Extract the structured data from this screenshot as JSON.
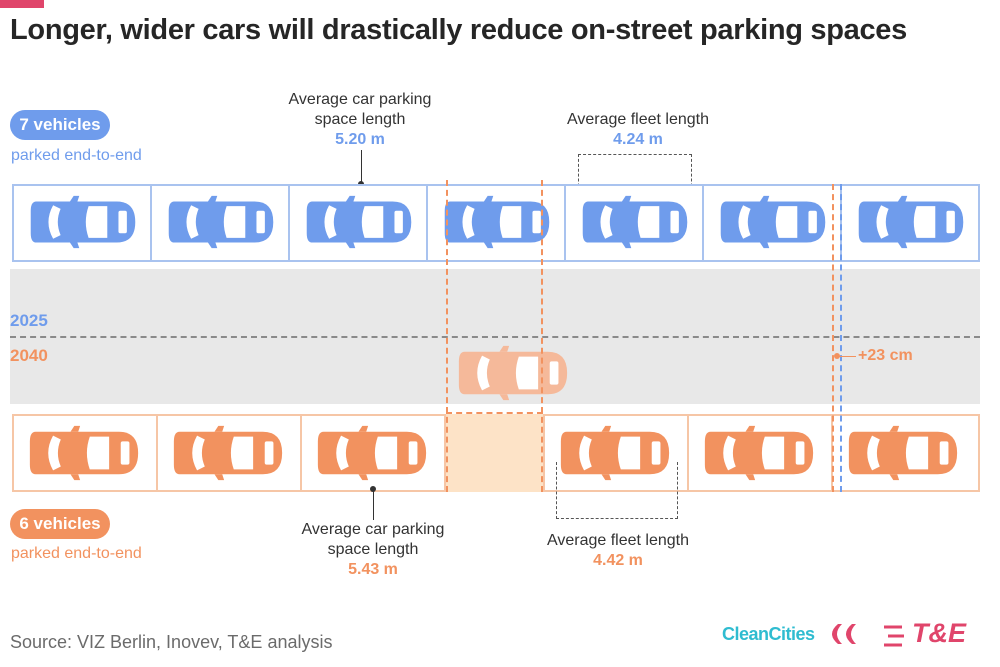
{
  "title": "Longer, wider cars will drastically reduce on-street parking spaces",
  "colors": {
    "blue": "#6f9cec",
    "orange": "#f2925f",
    "accent": "#e0456b",
    "cleancities": "#2fbcd0"
  },
  "top_row": {
    "count_label": "7 vehicles",
    "sub_label": "parked end-to-end",
    "year": "2025",
    "vehicles": 7,
    "space_label": "Average car parking space length",
    "space_value": "5.20 m",
    "fleet_label": "Average fleet length",
    "fleet_value": "4.24 m"
  },
  "bottom_row": {
    "count_label": "6 vehicles",
    "sub_label": "parked end-to-end",
    "year": "2040",
    "vehicles": 6,
    "space_label": "Average car parking space length",
    "space_value": "5.43 m",
    "fleet_label": "Average fleet length",
    "fleet_value": "4.42 m"
  },
  "difference_label": "+23 cm",
  "source": "Source: VIZ Berlin, Inovev, T&E analysis",
  "logos": {
    "cleancities": "CleanCities",
    "te": "T&E"
  },
  "icons": [
    "car-icon",
    "cleancities-logo-icon",
    "te-logo-icon"
  ]
}
